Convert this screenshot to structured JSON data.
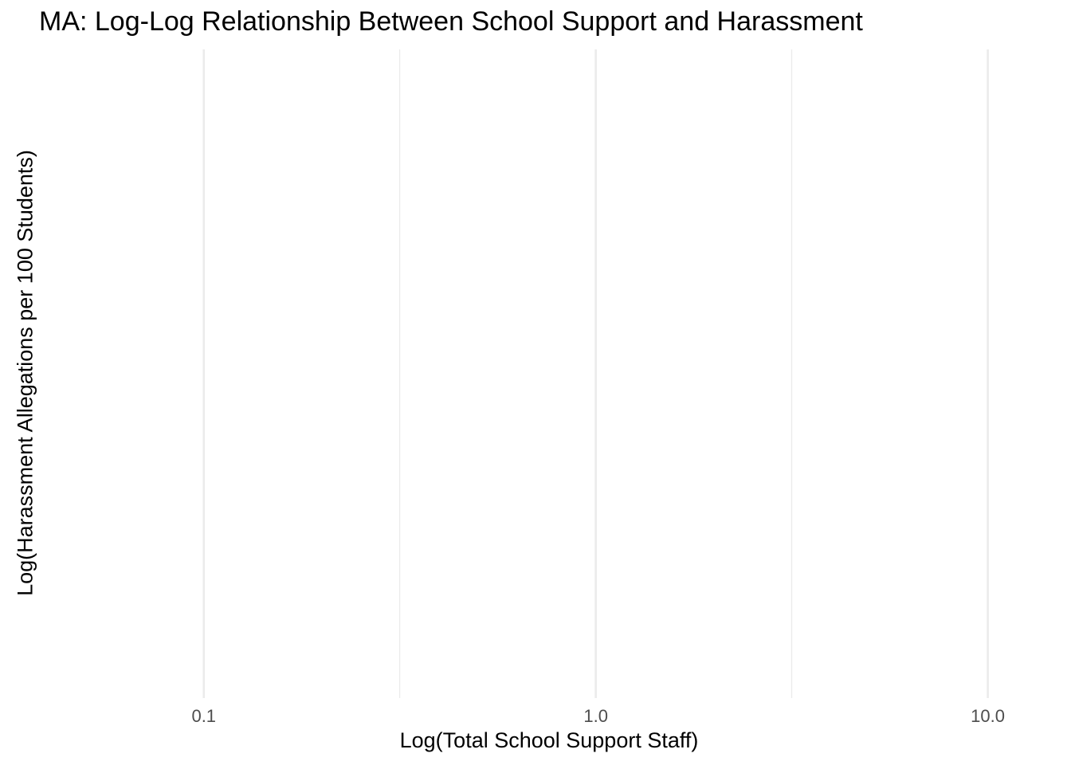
{
  "chart_data": {
    "type": "scatter",
    "title": "MA: Log-Log Relationship Between School Support and Harassment",
    "xlabel": "Log(Total School Support Staff)",
    "ylabel": "Log(Harassment Allegations per 100 Students)",
    "x_scale": "log10",
    "xlim": [
      0.04,
      16
    ],
    "x_ticks": [
      0.1,
      1,
      10
    ],
    "x_tick_labels": [
      "0.1",
      "1.0",
      "10.0"
    ],
    "x_minor_ticks": [
      0.316,
      3.16
    ],
    "y_ticks": [],
    "series": [
      {
        "x": [],
        "y": []
      }
    ],
    "grid": "vertical only",
    "legend": "none",
    "colors": {
      "grid": "#ebebeb",
      "tick_label": "#4d4d4d"
    }
  }
}
